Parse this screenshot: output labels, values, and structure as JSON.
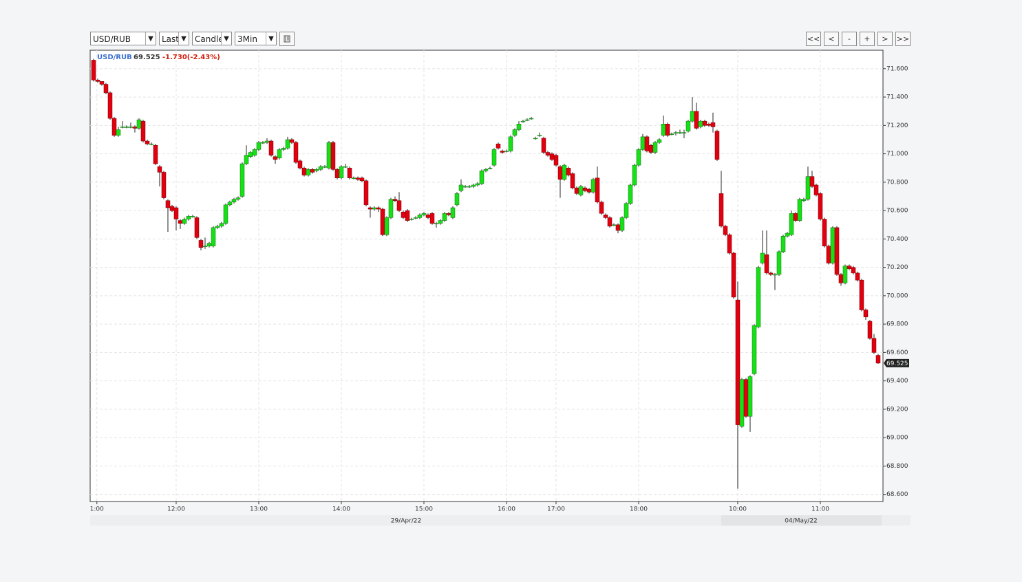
{
  "toolbar": {
    "symbol": "USD/RUB",
    "field": "Last",
    "style": "Candle",
    "interval": "3Min",
    "nav": [
      "<<",
      "<",
      "-",
      "+",
      ">",
      ">>"
    ]
  },
  "chart_data": {
    "type": "candlestick",
    "symbol": "USD/RUB",
    "change": "-1.730(-2.43%)",
    "last": {
      "value": 69.525,
      "label": "69.525"
    },
    "up_color": "#16e016",
    "down_color": "#e00010",
    "grid": true,
    "ylim": [
      68.55,
      71.73
    ],
    "yticks": [
      {
        "value": 68.6,
        "label": "68.600"
      },
      {
        "value": 68.8,
        "label": "68.800"
      },
      {
        "value": 69.0,
        "label": "69.000"
      },
      {
        "value": 69.2,
        "label": "69.200"
      },
      {
        "value": 69.4,
        "label": "69.400"
      },
      {
        "value": 69.6,
        "label": "69.600"
      },
      {
        "value": 69.8,
        "label": "69.800"
      },
      {
        "value": 70.0,
        "label": "70.000"
      },
      {
        "value": 70.2,
        "label": "70.200"
      },
      {
        "value": 70.4,
        "label": "70.400"
      },
      {
        "value": 70.6,
        "label": "70.600"
      },
      {
        "value": 70.8,
        "label": "70.800"
      },
      {
        "value": 71.0,
        "label": "71.000"
      },
      {
        "value": 71.2,
        "label": "71.200"
      },
      {
        "value": 71.4,
        "label": "71.400"
      },
      {
        "value": 71.6,
        "label": "71.600"
      }
    ],
    "xlim": [
      -0.83,
      191.17
    ],
    "xticks": [
      {
        "value": 0.8,
        "label": "1:00"
      },
      {
        "value": 20,
        "label": "12:00"
      },
      {
        "value": 40,
        "label": "13:00"
      },
      {
        "value": 60,
        "label": "14:00"
      },
      {
        "value": 80,
        "label": "15:00"
      },
      {
        "value": 100,
        "label": "16:00"
      },
      {
        "value": 112,
        "label": "17:00"
      },
      {
        "value": 132,
        "label": "18:00"
      },
      {
        "value": 156,
        "label": "10:00"
      },
      {
        "value": 176,
        "label": "11:00"
      }
    ],
    "date_labels": [
      "29/Apr/22",
      "04/May/22"
    ],
    "candles": [
      [
        71.66,
        71.67,
        71.51,
        71.52
      ],
      [
        71.52,
        71.53,
        71.5,
        71.51
      ],
      [
        71.51,
        71.51,
        71.48,
        71.49
      ],
      [
        71.49,
        71.5,
        71.42,
        71.43
      ],
      [
        71.43,
        71.44,
        71.24,
        71.25
      ],
      [
        71.25,
        71.26,
        71.12,
        71.13
      ],
      [
        71.13,
        71.19,
        71.12,
        71.17
      ],
      [
        71.19,
        71.23,
        71.18,
        71.19
      ],
      [
        71.19,
        71.2,
        71.18,
        71.19
      ],
      [
        71.19,
        71.22,
        71.18,
        71.19
      ],
      [
        71.19,
        71.2,
        71.15,
        71.18
      ],
      [
        71.18,
        71.25,
        71.17,
        71.24
      ],
      [
        71.23,
        71.24,
        71.08,
        71.09
      ],
      [
        71.09,
        71.1,
        71.06,
        71.07
      ],
      [
        71.07,
        71.08,
        71.06,
        71.07
      ],
      [
        71.06,
        71.07,
        70.92,
        70.93
      ],
      [
        70.91,
        70.92,
        70.77,
        70.87
      ],
      [
        70.87,
        70.88,
        70.68,
        70.69
      ],
      [
        70.67,
        70.68,
        70.45,
        70.62
      ],
      [
        70.63,
        70.64,
        70.59,
        70.6
      ],
      [
        70.62,
        70.63,
        70.46,
        70.54
      ],
      [
        70.53,
        70.54,
        70.47,
        70.51
      ],
      [
        70.51,
        70.55,
        70.5,
        70.54
      ],
      [
        70.54,
        70.57,
        70.53,
        70.56
      ],
      [
        70.56,
        70.57,
        70.55,
        70.56
      ],
      [
        70.55,
        70.56,
        70.4,
        70.41
      ],
      [
        70.39,
        70.4,
        70.32,
        70.34
      ],
      [
        70.35,
        70.41,
        70.33,
        70.35
      ],
      [
        70.35,
        70.38,
        70.34,
        70.37
      ],
      [
        70.35,
        70.49,
        70.34,
        70.48
      ],
      [
        70.48,
        70.5,
        70.47,
        70.49
      ],
      [
        70.49,
        70.52,
        70.48,
        70.51
      ],
      [
        70.51,
        70.65,
        70.5,
        70.64
      ],
      [
        70.64,
        70.67,
        70.63,
        70.66
      ],
      [
        70.66,
        70.69,
        70.65,
        70.68
      ],
      [
        70.68,
        70.7,
        70.67,
        70.69
      ],
      [
        70.7,
        70.94,
        70.69,
        70.93
      ],
      [
        70.93,
        71.06,
        70.92,
        70.99
      ],
      [
        70.98,
        71.02,
        70.97,
        71.01
      ],
      [
        70.99,
        71.04,
        70.98,
        71.03
      ],
      [
        71.03,
        71.09,
        71.02,
        71.08
      ],
      [
        71.08,
        71.09,
        71.07,
        71.08
      ],
      [
        71.08,
        71.11,
        71.07,
        71.09
      ],
      [
        71.09,
        71.1,
        70.98,
        70.99
      ],
      [
        70.98,
        70.99,
        70.93,
        70.96
      ],
      [
        70.97,
        71.04,
        70.96,
        71.03
      ],
      [
        71.03,
        71.05,
        71.02,
        71.04
      ],
      [
        71.04,
        71.12,
        71.03,
        71.1
      ],
      [
        71.1,
        71.11,
        71.07,
        71.08
      ],
      [
        71.08,
        71.09,
        70.93,
        70.94
      ],
      [
        70.95,
        70.96,
        70.89,
        70.9
      ],
      [
        70.9,
        70.91,
        70.84,
        70.85
      ],
      [
        70.85,
        70.9,
        70.84,
        70.89
      ],
      [
        70.89,
        70.9,
        70.86,
        70.87
      ],
      [
        70.88,
        70.9,
        70.87,
        70.89
      ],
      [
        70.89,
        70.92,
        70.88,
        70.91
      ],
      [
        70.91,
        70.92,
        70.9,
        70.91
      ],
      [
        70.9,
        71.09,
        70.89,
        71.08
      ],
      [
        71.08,
        71.09,
        70.88,
        70.89
      ],
      [
        70.89,
        70.9,
        70.82,
        70.83
      ],
      [
        70.83,
        70.92,
        70.82,
        70.91
      ],
      [
        70.91,
        70.93,
        70.9,
        70.91
      ],
      [
        70.9,
        70.91,
        70.82,
        70.83
      ],
      [
        70.83,
        70.84,
        70.82,
        70.83
      ],
      [
        70.83,
        70.84,
        70.81,
        70.82
      ],
      [
        70.83,
        70.84,
        70.8,
        70.81
      ],
      [
        70.81,
        70.82,
        70.63,
        70.64
      ],
      [
        70.62,
        70.63,
        70.55,
        70.61
      ],
      [
        70.61,
        70.63,
        70.6,
        70.62
      ],
      [
        70.62,
        70.63,
        70.59,
        70.61
      ],
      [
        70.61,
        70.62,
        70.42,
        70.43
      ],
      [
        70.43,
        70.56,
        70.42,
        70.55
      ],
      [
        70.55,
        70.69,
        70.54,
        70.68
      ],
      [
        70.68,
        70.7,
        70.66,
        70.67
      ],
      [
        70.67,
        70.73,
        70.59,
        70.6
      ],
      [
        70.59,
        70.6,
        70.54,
        70.55
      ],
      [
        70.6,
        70.61,
        70.52,
        70.53
      ],
      [
        70.54,
        70.55,
        70.53,
        70.54
      ],
      [
        70.55,
        70.56,
        70.54,
        70.55
      ],
      [
        70.55,
        70.58,
        70.54,
        70.57
      ],
      [
        70.57,
        70.59,
        70.56,
        70.58
      ],
      [
        70.57,
        70.58,
        70.54,
        70.55
      ],
      [
        70.58,
        70.59,
        70.5,
        70.51
      ],
      [
        70.51,
        70.52,
        70.48,
        70.51
      ],
      [
        70.51,
        70.54,
        70.5,
        70.53
      ],
      [
        70.53,
        70.59,
        70.52,
        70.58
      ],
      [
        70.58,
        70.59,
        70.56,
        70.57
      ],
      [
        70.55,
        70.63,
        70.54,
        70.62
      ],
      [
        70.64,
        70.73,
        70.63,
        70.72
      ],
      [
        70.74,
        70.82,
        70.73,
        70.78
      ],
      [
        70.77,
        70.78,
        70.76,
        70.77
      ],
      [
        70.77,
        70.78,
        70.76,
        70.77
      ],
      [
        70.77,
        70.79,
        70.76,
        70.78
      ],
      [
        70.78,
        70.8,
        70.77,
        70.79
      ],
      [
        70.79,
        70.89,
        70.78,
        70.88
      ],
      [
        70.88,
        70.9,
        70.87,
        70.89
      ],
      [
        70.9,
        70.91,
        70.89,
        70.9
      ],
      [
        70.92,
        71.04,
        70.91,
        71.03
      ],
      [
        71.07,
        71.08,
        71.03,
        71.04
      ],
      [
        71.02,
        71.03,
        71.0,
        71.01
      ],
      [
        71.02,
        71.03,
        71.01,
        71.02
      ],
      [
        71.02,
        71.13,
        71.01,
        71.12
      ],
      [
        71.13,
        71.18,
        71.12,
        71.17
      ],
      [
        71.17,
        71.23,
        71.16,
        71.21
      ],
      [
        71.23,
        71.24,
        71.22,
        71.23
      ],
      [
        71.24,
        71.25,
        71.23,
        71.24
      ],
      [
        71.25,
        71.26,
        71.24,
        71.25
      ],
      [
        71.11,
        71.12,
        71.1,
        71.11
      ],
      [
        71.13,
        71.15,
        71.12,
        71.13
      ],
      [
        71.11,
        71.12,
        71.0,
        71.01
      ],
      [
        71.01,
        71.02,
        70.98,
        70.99
      ],
      [
        71.0,
        71.01,
        70.95,
        70.96
      ],
      [
        70.99,
        71.0,
        70.91,
        70.92
      ],
      [
        70.91,
        70.92,
        70.69,
        70.82
      ],
      [
        70.82,
        70.93,
        70.81,
        70.92
      ],
      [
        70.9,
        70.91,
        70.84,
        70.85
      ],
      [
        70.86,
        70.87,
        70.75,
        70.76
      ],
      [
        70.76,
        70.77,
        70.71,
        70.72
      ],
      [
        70.71,
        70.78,
        70.7,
        70.77
      ],
      [
        70.76,
        70.77,
        70.73,
        70.74
      ],
      [
        70.75,
        70.76,
        70.72,
        70.73
      ],
      [
        70.73,
        70.83,
        70.72,
        70.82
      ],
      [
        70.83,
        70.91,
        70.65,
        70.66
      ],
      [
        70.66,
        70.67,
        70.57,
        70.58
      ],
      [
        70.57,
        70.58,
        70.54,
        70.55
      ],
      [
        70.55,
        70.56,
        70.48,
        70.49
      ],
      [
        70.5,
        70.51,
        70.49,
        70.5
      ],
      [
        70.5,
        70.51,
        70.44,
        70.46
      ],
      [
        70.46,
        70.56,
        70.45,
        70.55
      ],
      [
        70.55,
        70.66,
        70.54,
        70.65
      ],
      [
        70.65,
        70.79,
        70.64,
        70.78
      ],
      [
        70.78,
        70.93,
        70.77,
        70.92
      ],
      [
        70.92,
        71.04,
        70.91,
        71.03
      ],
      [
        71.03,
        71.14,
        71.02,
        71.12
      ],
      [
        71.12,
        71.13,
        71.01,
        71.02
      ],
      [
        71.06,
        71.07,
        71.0,
        71.01
      ],
      [
        71.01,
        71.09,
        71.0,
        71.08
      ],
      [
        71.08,
        71.11,
        71.07,
        71.1
      ],
      [
        71.13,
        71.27,
        71.12,
        71.21
      ],
      [
        71.21,
        71.22,
        71.12,
        71.13
      ],
      [
        71.14,
        71.15,
        71.13,
        71.14
      ],
      [
        71.15,
        71.16,
        71.13,
        71.15
      ],
      [
        71.15,
        71.17,
        71.14,
        71.15
      ],
      [
        71.15,
        71.17,
        71.11,
        71.15
      ],
      [
        71.16,
        71.24,
        71.15,
        71.23
      ],
      [
        71.23,
        71.4,
        71.22,
        71.3
      ],
      [
        71.3,
        71.36,
        71.17,
        71.18
      ],
      [
        71.19,
        71.24,
        71.18,
        71.23
      ],
      [
        71.23,
        71.24,
        71.19,
        71.2
      ],
      [
        71.21,
        71.22,
        71.19,
        71.2
      ],
      [
        71.22,
        71.29,
        71.15,
        71.19
      ],
      [
        71.16,
        71.17,
        70.95,
        70.96
      ],
      [
        70.72,
        70.88,
        70.48,
        70.49
      ],
      [
        70.49,
        70.5,
        70.42,
        70.43
      ],
      [
        70.43,
        70.44,
        70.29,
        70.3
      ],
      [
        70.3,
        70.31,
        69.98,
        69.99
      ],
      [
        69.97,
        70.1,
        68.64,
        69.09
      ],
      [
        69.08,
        69.42,
        69.07,
        69.41
      ],
      [
        69.41,
        69.42,
        69.14,
        69.15
      ],
      [
        69.15,
        69.44,
        69.04,
        69.43
      ],
      [
        69.45,
        69.8,
        69.44,
        69.79
      ],
      [
        69.78,
        70.21,
        69.77,
        70.2
      ],
      [
        70.23,
        70.46,
        70.22,
        70.3
      ],
      [
        70.29,
        70.46,
        70.15,
        70.16
      ],
      [
        70.16,
        70.17,
        70.14,
        70.15
      ],
      [
        70.15,
        70.16,
        70.04,
        70.15
      ],
      [
        70.15,
        70.32,
        70.14,
        70.31
      ],
      [
        70.31,
        70.43,
        70.3,
        70.42
      ],
      [
        70.42,
        70.45,
        70.41,
        70.44
      ],
      [
        70.43,
        70.6,
        70.42,
        70.58
      ],
      [
        70.58,
        70.59,
        70.52,
        70.53
      ],
      [
        70.53,
        70.69,
        70.52,
        70.68
      ],
      [
        70.67,
        70.69,
        70.66,
        70.68
      ],
      [
        70.68,
        70.91,
        70.67,
        70.84
      ],
      [
        70.84,
        70.88,
        70.76,
        70.77
      ],
      [
        70.78,
        70.79,
        70.7,
        70.71
      ],
      [
        70.72,
        70.73,
        70.53,
        70.54
      ],
      [
        70.54,
        70.55,
        70.34,
        70.35
      ],
      [
        70.35,
        70.36,
        70.22,
        70.23
      ],
      [
        70.23,
        70.49,
        70.22,
        70.48
      ],
      [
        70.48,
        70.49,
        70.14,
        70.15
      ],
      [
        70.15,
        70.16,
        70.07,
        70.09
      ],
      [
        70.09,
        70.22,
        70.08,
        70.21
      ],
      [
        70.21,
        70.22,
        70.18,
        70.19
      ],
      [
        70.2,
        70.21,
        70.15,
        70.16
      ],
      [
        70.16,
        70.17,
        70.1,
        70.11
      ],
      [
        70.11,
        70.12,
        69.89,
        69.9
      ],
      [
        69.9,
        69.91,
        69.83,
        69.85
      ],
      [
        69.82,
        69.83,
        69.69,
        69.7
      ],
      [
        69.7,
        69.73,
        69.59,
        69.6
      ],
      [
        69.58,
        69.59,
        69.52,
        69.525
      ]
    ]
  }
}
